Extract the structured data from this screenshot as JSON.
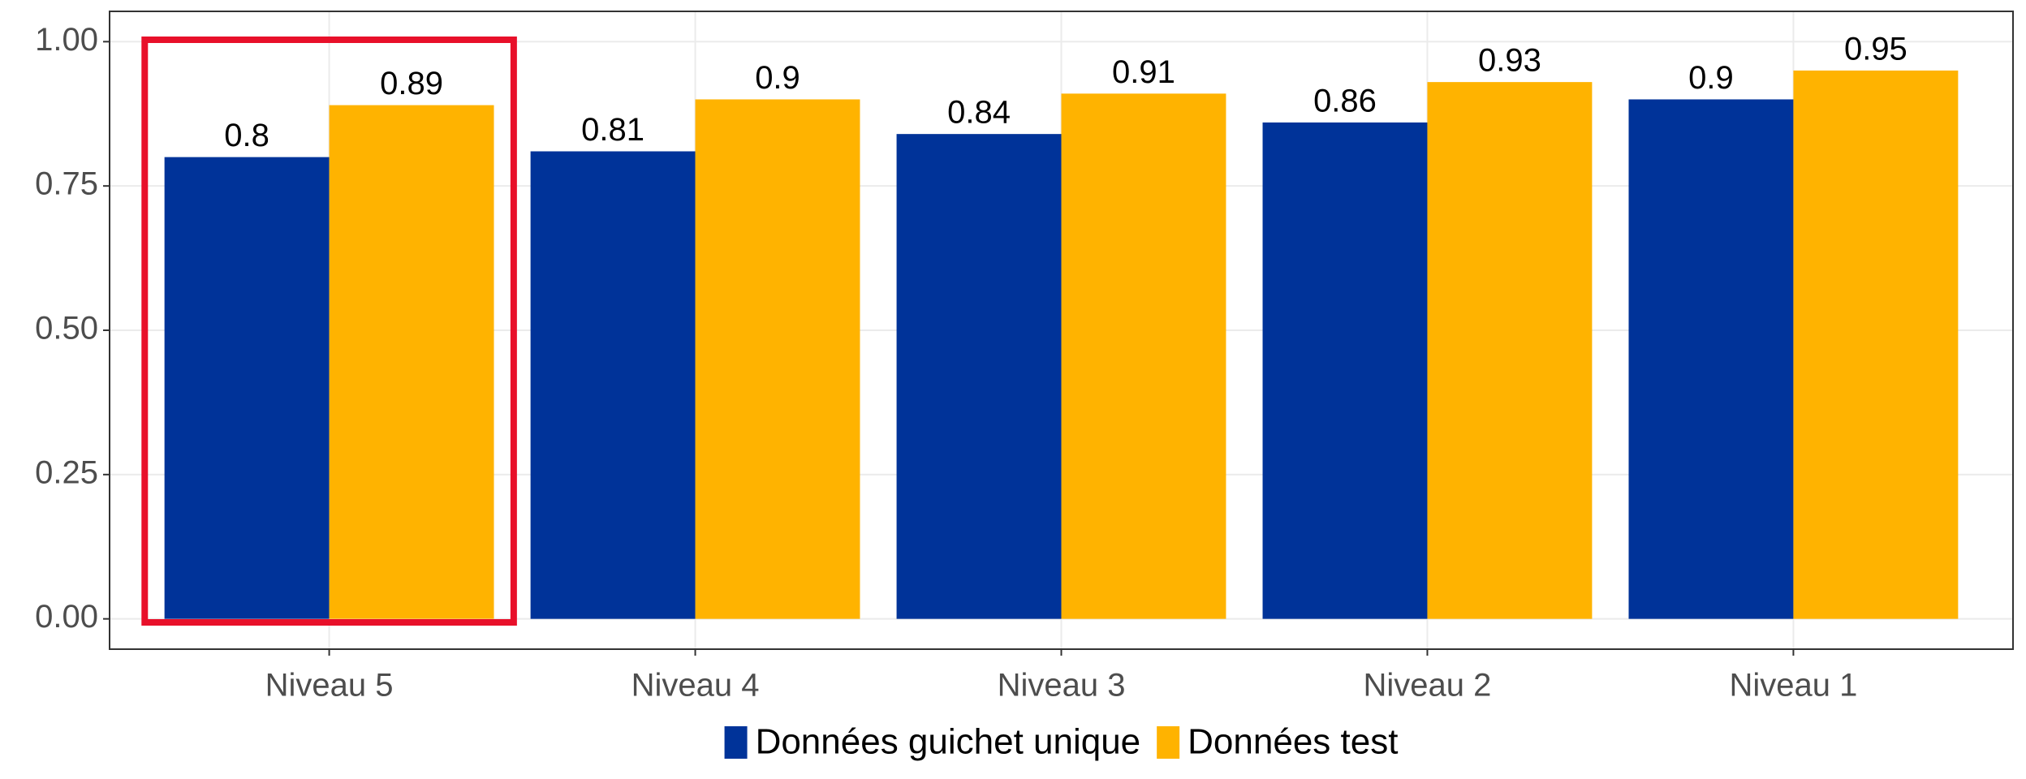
{
  "chart_data": {
    "type": "bar",
    "categories": [
      "Niveau 5",
      "Niveau 4",
      "Niveau 3",
      "Niveau 2",
      "Niveau 1"
    ],
    "series": [
      {
        "name": "Données guichet unique",
        "color": "#003399",
        "values": [
          0.8,
          0.81,
          0.84,
          0.86,
          0.9
        ]
      },
      {
        "name": "Données test",
        "color": "#ffb300",
        "values": [
          0.89,
          0.9,
          0.91,
          0.93,
          0.95
        ]
      }
    ],
    "ylim": [
      -0.0525,
      1.0525
    ],
    "yticks": [
      {
        "value": 0,
        "label": "0.00"
      },
      {
        "value": 0.25,
        "label": "0.25"
      },
      {
        "value": 0.5,
        "label": "0.50"
      },
      {
        "value": 0.75,
        "label": "0.75"
      },
      {
        "value": 1,
        "label": "1.00"
      }
    ],
    "grid": true,
    "legend": "bottom"
  }
}
